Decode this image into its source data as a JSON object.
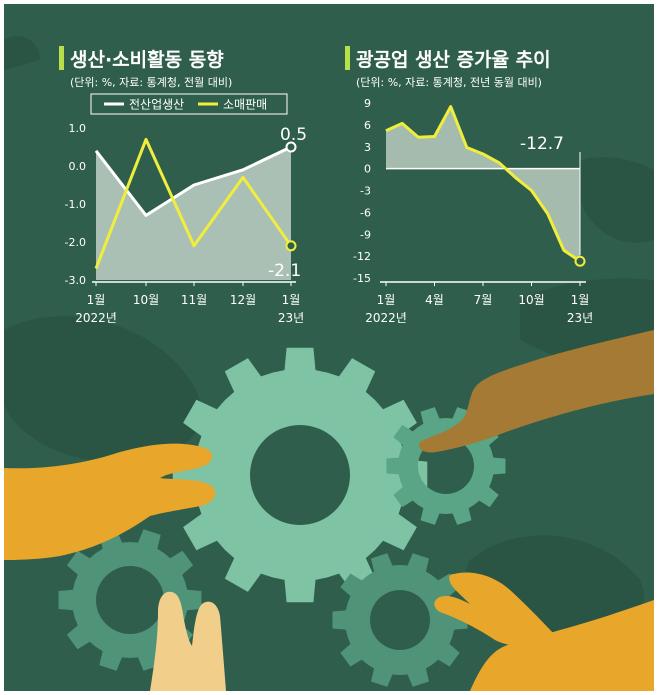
{
  "colors": {
    "background": "#2f5f4c",
    "series_white": "#ffffff",
    "series_yellow": "#f0ee3c",
    "area_fill": "#b9cbc0",
    "title_bar": "#b8e04a",
    "gear_light": "#7dc3a4",
    "gear_dark": "#4f9479",
    "hand_orange": "#e8a62a",
    "hand_brown": "#a47a34",
    "hand_light": "#f1cf8a"
  },
  "chart_data": [
    {
      "type": "line",
      "title": "생산·소비활동 동향",
      "subtitle": "(단위: %, 자료: 통계청, 전월 대비)",
      "legend_position": "top",
      "categories": [
        "1월",
        "10월",
        "11월",
        "12월",
        "1월"
      ],
      "category_sublabels": [
        "2022년",
        "",
        "",
        "",
        "23년"
      ],
      "series": [
        {
          "name": "전산업생산",
          "values": [
            0.4,
            -1.3,
            -0.5,
            -0.1,
            0.5
          ]
        },
        {
          "name": "소매판매",
          "values": [
            -2.7,
            0.7,
            -2.1,
            -0.3,
            -2.1
          ]
        }
      ],
      "annotations": [
        "0.5",
        "-2.1"
      ],
      "yticks": [
        "1.0",
        "0.0",
        "-1.0",
        "-2.0",
        "-3.0"
      ],
      "ylim": [
        -3.0,
        1.0
      ],
      "grid": false
    },
    {
      "type": "area",
      "title": "광공업 생산 증가율 추이",
      "subtitle": "(단위: %, 자료: 통계청, 전년 동월 대비)",
      "categories": [
        "1월",
        "4월",
        "7월",
        "10월",
        "1월"
      ],
      "category_sublabels": [
        "2022년",
        "",
        "",
        "",
        "23년"
      ],
      "x": [
        "2022-01",
        "2022-02",
        "2022-03",
        "2022-04",
        "2022-05",
        "2022-06",
        "2022-07",
        "2022-08",
        "2022-09",
        "2022-10",
        "2022-11",
        "2022-12",
        "2023-01"
      ],
      "values": [
        5.2,
        6.2,
        4.3,
        4.4,
        8.5,
        2.9,
        2.0,
        0.8,
        -1.2,
        -3.0,
        -6.2,
        -11.2,
        -12.7
      ],
      "annotations": [
        "-12.7"
      ],
      "yticks": [
        "9",
        "6",
        "3",
        "0",
        "-3",
        "-6",
        "-9",
        "-12",
        "-15"
      ],
      "ylim": [
        -15,
        9
      ],
      "grid": false
    }
  ]
}
